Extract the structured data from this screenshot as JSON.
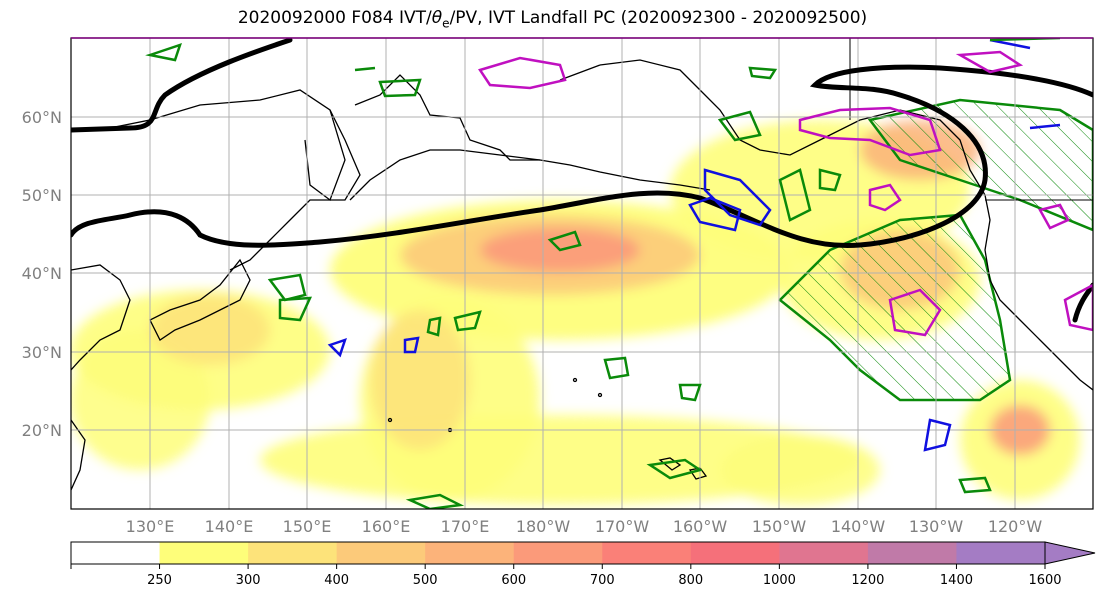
{
  "figure": {
    "title_pre": "2020092000 F084 IVT/",
    "title_theta": "θ",
    "title_sub": "e",
    "title_post": "/PV, IVT Landfall PC (2020092300 - 2020092500)"
  },
  "map": {
    "lat_labels": [
      "60°N",
      "50°N",
      "40°N",
      "30°N",
      "20°N"
    ],
    "lon_labels": [
      "130°E",
      "140°E",
      "150°E",
      "160°E",
      "170°E",
      "180°W",
      "170°W",
      "160°W",
      "150°W",
      "140°W",
      "130°W",
      "120°W"
    ],
    "colors": {
      "coast": "#000000",
      "grid": "#b0b0b0",
      "theta_e": "#000000",
      "pv_blue": "#1010e0",
      "pv_magenta": "#c010c0",
      "landfall_green": "#0a8a0a"
    }
  },
  "colorbar": {
    "levels": [
      "250",
      "300",
      "400",
      "500",
      "600",
      "700",
      "800",
      "1000",
      "1200",
      "1400",
      "1600"
    ],
    "colors": [
      "#ffffff",
      "#fefe7a",
      "#fde37a",
      "#fcca7a",
      "#fcb37a",
      "#fb9a7a",
      "#fa8078",
      "#f5707a",
      "#e07590",
      "#c07aa8",
      "#a47cc4"
    ]
  }
}
